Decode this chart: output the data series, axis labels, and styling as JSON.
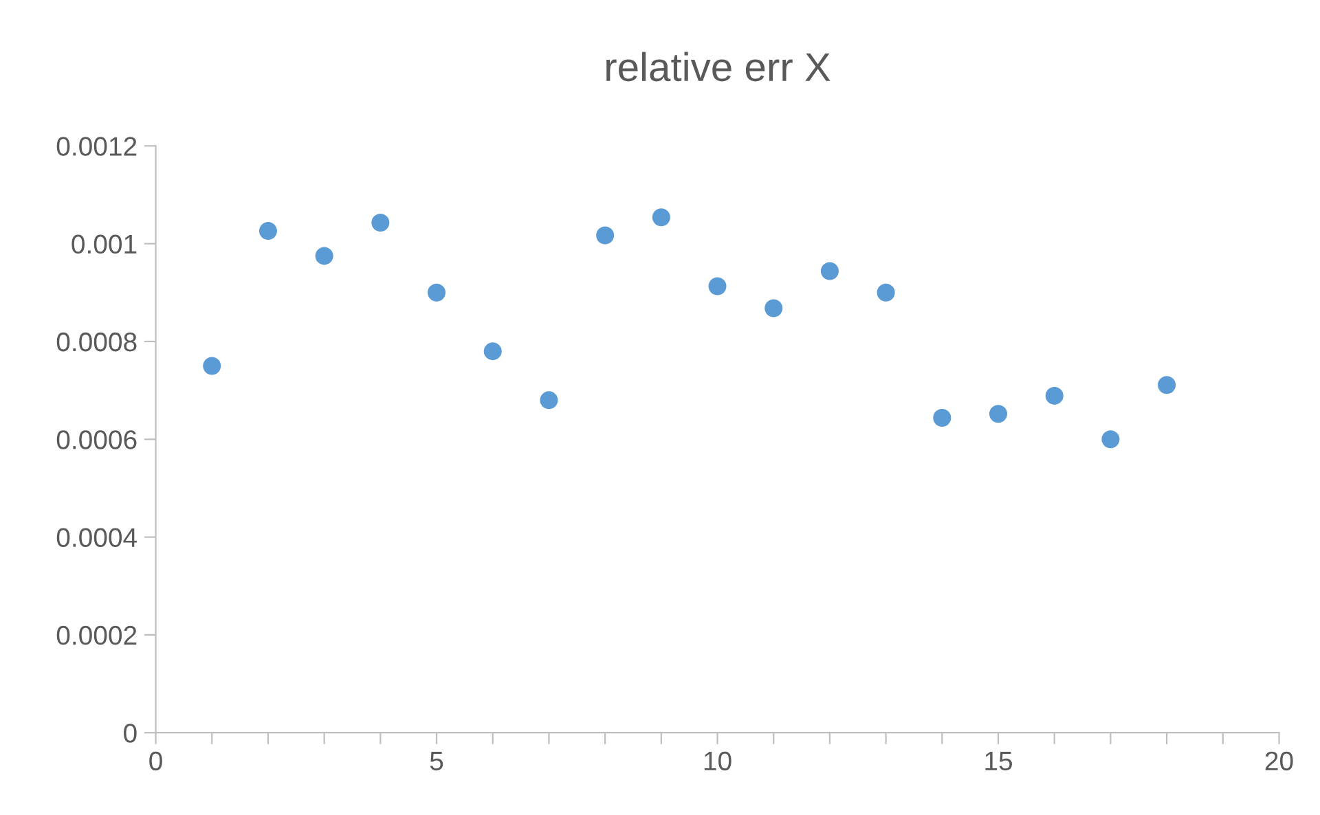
{
  "chart_data": {
    "type": "scatter",
    "title": "relative err X",
    "x": [
      1,
      2,
      3,
      4,
      5,
      6,
      7,
      8,
      9,
      10,
      11,
      12,
      13,
      14,
      15,
      16,
      17,
      18
    ],
    "series": [
      {
        "color": "#5b9bd5",
        "values": [
          0.00075,
          0.001026,
          0.000975,
          0.001043,
          0.0009,
          0.00078,
          0.00068,
          0.001017,
          0.001054,
          0.000913,
          0.000868,
          0.000944,
          0.0009,
          0.000644,
          0.000652,
          0.000689,
          0.0006,
          0.000711
        ]
      }
    ],
    "xlim": [
      0,
      20
    ],
    "xticks": [
      0,
      {
        "value": 1,
        "label": null
      },
      {
        "value": 2,
        "label": null
      },
      {
        "value": 3,
        "label": null
      },
      {
        "value": 4,
        "label": null
      },
      5,
      {
        "value": 6,
        "label": null
      },
      {
        "value": 7,
        "label": null
      },
      {
        "value": 8,
        "label": null
      },
      {
        "value": 9,
        "label": null
      },
      10,
      {
        "value": 11,
        "label": null
      },
      {
        "value": 12,
        "label": null
      },
      {
        "value": 13,
        "label": null
      },
      {
        "value": 14,
        "label": null
      },
      15,
      {
        "value": 16,
        "label": null
      },
      {
        "value": 17,
        "label": null
      },
      {
        "value": 18,
        "label": null
      },
      {
        "value": 19,
        "label": null
      },
      20
    ],
    "ylim": [
      0,
      0.0012
    ],
    "yticks": [
      0,
      0.0002,
      0.0004,
      0.0006,
      0.0008,
      0.001,
      0.0012
    ],
    "grid": false,
    "legend": false,
    "marker": "circle"
  }
}
